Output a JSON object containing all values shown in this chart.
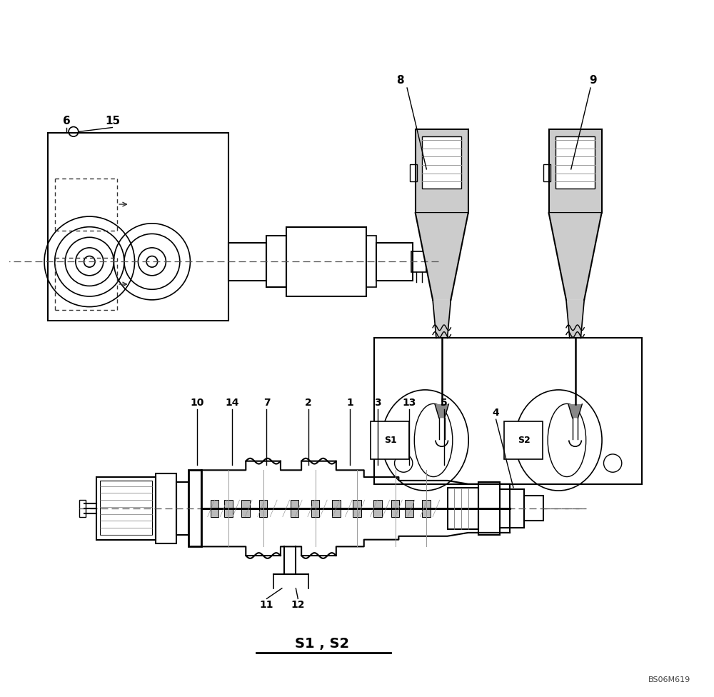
{
  "bg_color": "#ffffff",
  "line_color": "#000000",
  "dashed_color": "#555555",
  "title": "S1 , S2",
  "watermark": "BS06M619"
}
